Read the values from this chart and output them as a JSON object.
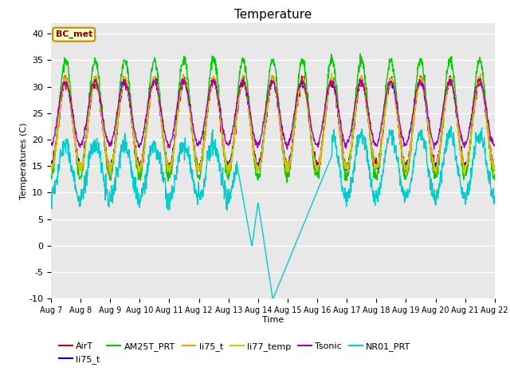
{
  "title": "Temperature",
  "xlabel": "Time",
  "ylabel": "Temperatures (C)",
  "ylim": [
    -10,
    42
  ],
  "annotation": "BC_met",
  "bg_color": "#e8e8e8",
  "series": [
    {
      "name": "AirT",
      "color": "#cc0000"
    },
    {
      "name": "li75_t",
      "color": "#0000cc"
    },
    {
      "name": "AM25T_PRT",
      "color": "#00cc00"
    },
    {
      "name": "li75_t",
      "color": "#ff9900"
    },
    {
      "name": "li77_temp",
      "color": "#cccc00"
    },
    {
      "name": "Tsonic",
      "color": "#aa00aa"
    },
    {
      "name": "NR01_PRT",
      "color": "#00cccc"
    }
  ],
  "yticks": [
    -10,
    -5,
    0,
    5,
    10,
    15,
    20,
    25,
    30,
    35,
    40
  ],
  "n_days": 15
}
